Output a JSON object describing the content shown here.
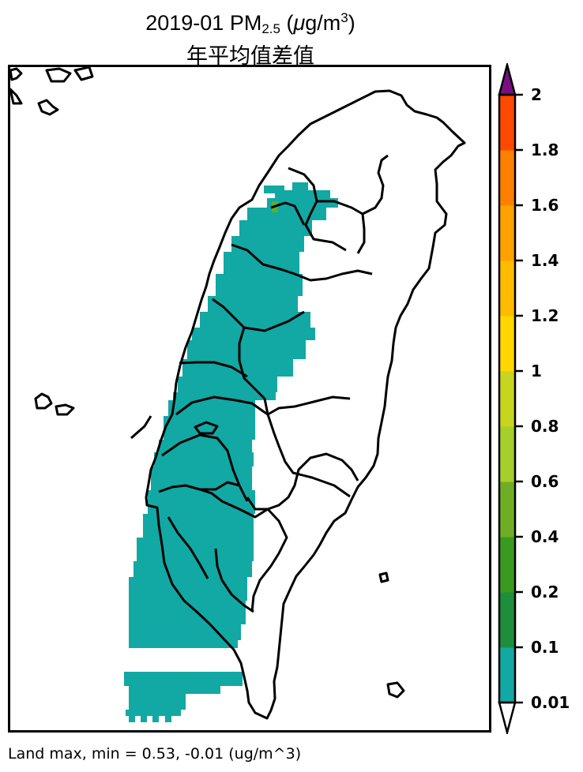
{
  "title": {
    "prefix": "2019-01 PM",
    "subscript": "2.5",
    "unit_open": " (",
    "unit_mu": "μ",
    "unit_core": "g/m",
    "unit_sup": "3",
    "unit_close": ")",
    "line2": "年平均值差值"
  },
  "footer": {
    "text": "Land max, min = 0.53, -0.01 (ug/m^3)"
  },
  "colorbar": {
    "tick_labels": [
      "0.01",
      "0.1",
      "0.2",
      "0.4",
      "0.6",
      "0.8",
      "1",
      "1.2",
      "1.4",
      "1.6",
      "1.8",
      "2"
    ],
    "colors": [
      "#12a8a4",
      "#1f8e3c",
      "#3a9a1f",
      "#6fae24",
      "#a5cf2a",
      "#c6d51f",
      "#ffd600",
      "#ffbb00",
      "#ffa200",
      "#ff8000",
      "#ff4800"
    ],
    "over_color": "#7a0f82",
    "under_color": "#ffffff"
  },
  "map": {
    "fill_color": "#12a8a4",
    "hotspot_color": "#5fae2a",
    "outline_color": "#000000"
  }
}
